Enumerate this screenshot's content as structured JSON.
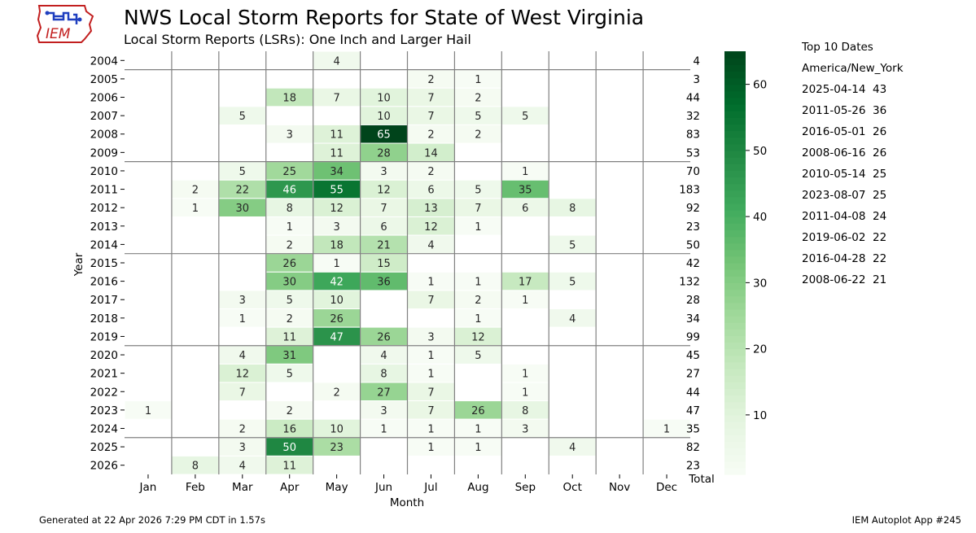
{
  "header": {
    "logo_text": "IEM",
    "title": "NWS Local Storm Reports for State of West Virginia",
    "subtitle": "Local Storm Reports (LSRs): One Inch and Larger Hail"
  },
  "colors": {
    "cmap_low": "#f7fcf5",
    "cmap_high": "#00441b",
    "grid": "#808080"
  },
  "chart_data": {
    "type": "heatmap",
    "title": "NWS Local Storm Reports for State of West Virginia",
    "subtitle": "Local Storm Reports (LSRs): One Inch and Larger Hail",
    "xlabel": "Month",
    "ylabel": "Year",
    "x": [
      "Jan",
      "Feb",
      "Mar",
      "Apr",
      "May",
      "Jun",
      "Jul",
      "Aug",
      "Sep",
      "Oct",
      "Nov",
      "Dec"
    ],
    "y": [
      "2004",
      "2005",
      "2006",
      "2007",
      "2008",
      "2009",
      "2010",
      "2011",
      "2012",
      "2013",
      "2014",
      "2015",
      "2016",
      "2017",
      "2018",
      "2019",
      "2020",
      "2021",
      "2022",
      "2023",
      "2024",
      "2025",
      "2026"
    ],
    "total_label": "Total",
    "values": [
      [
        null,
        null,
        null,
        null,
        4,
        null,
        null,
        null,
        null,
        null,
        null,
        null
      ],
      [
        null,
        null,
        null,
        null,
        null,
        null,
        2,
        1,
        null,
        null,
        null,
        null
      ],
      [
        null,
        null,
        null,
        18,
        7,
        10,
        7,
        2,
        null,
        null,
        null,
        null
      ],
      [
        null,
        null,
        5,
        null,
        null,
        10,
        7,
        5,
        5,
        null,
        null,
        null
      ],
      [
        null,
        null,
        null,
        3,
        11,
        65,
        2,
        2,
        null,
        null,
        null,
        null
      ],
      [
        null,
        null,
        null,
        null,
        11,
        28,
        14,
        null,
        null,
        null,
        null,
        null
      ],
      [
        null,
        null,
        5,
        25,
        34,
        3,
        2,
        null,
        1,
        null,
        null,
        null
      ],
      [
        null,
        2,
        22,
        46,
        55,
        12,
        6,
        5,
        35,
        null,
        null,
        null
      ],
      [
        null,
        1,
        30,
        8,
        12,
        7,
        13,
        7,
        6,
        8,
        null,
        null
      ],
      [
        null,
        null,
        null,
        1,
        3,
        6,
        12,
        1,
        null,
        null,
        null,
        null
      ],
      [
        null,
        null,
        null,
        2,
        18,
        21,
        4,
        null,
        null,
        5,
        null,
        null
      ],
      [
        null,
        null,
        null,
        26,
        1,
        15,
        null,
        null,
        null,
        null,
        null,
        null
      ],
      [
        null,
        null,
        null,
        30,
        42,
        36,
        1,
        1,
        17,
        5,
        null,
        null
      ],
      [
        null,
        null,
        3,
        5,
        10,
        null,
        7,
        2,
        1,
        null,
        null,
        null
      ],
      [
        null,
        null,
        1,
        2,
        26,
        null,
        null,
        1,
        null,
        4,
        null,
        null
      ],
      [
        null,
        null,
        null,
        11,
        47,
        26,
        3,
        12,
        null,
        null,
        null,
        null
      ],
      [
        null,
        null,
        4,
        31,
        null,
        4,
        1,
        5,
        null,
        null,
        null,
        null
      ],
      [
        null,
        null,
        12,
        5,
        null,
        8,
        1,
        null,
        1,
        null,
        null,
        null
      ],
      [
        null,
        null,
        7,
        null,
        2,
        27,
        7,
        null,
        1,
        null,
        null,
        null
      ],
      [
        1,
        null,
        null,
        2,
        null,
        3,
        7,
        26,
        8,
        null,
        null,
        null
      ],
      [
        null,
        null,
        2,
        16,
        10,
        1,
        1,
        1,
        3,
        null,
        null,
        1
      ],
      [
        null,
        null,
        3,
        50,
        23,
        null,
        1,
        1,
        null,
        4,
        null,
        null
      ],
      [
        null,
        8,
        4,
        11,
        null,
        null,
        null,
        null,
        null,
        null,
        null,
        null
      ]
    ],
    "totals": [
      4,
      3,
      44,
      32,
      83,
      53,
      70,
      183,
      92,
      23,
      50,
      42,
      132,
      28,
      34,
      99,
      45,
      27,
      44,
      47,
      35,
      82,
      23
    ],
    "colorbar": {
      "range": [
        1,
        65
      ],
      "ticks": [
        10,
        20,
        30,
        40,
        50,
        60
      ]
    }
  },
  "top_dates": {
    "heading": "Top 10 Dates",
    "timezone": "America/New_York",
    "items": [
      {
        "date": "2025-04-14",
        "count": "43"
      },
      {
        "date": "2011-05-26",
        "count": "36"
      },
      {
        "date": "2016-05-01",
        "count": "26"
      },
      {
        "date": "2008-06-16",
        "count": "26"
      },
      {
        "date": "2010-05-14",
        "count": "25"
      },
      {
        "date": "2023-08-07",
        "count": "25"
      },
      {
        "date": "2011-04-08",
        "count": "24"
      },
      {
        "date": "2019-06-02",
        "count": "22"
      },
      {
        "date": "2016-04-28",
        "count": "22"
      },
      {
        "date": "2008-06-22",
        "count": "21"
      }
    ]
  },
  "footer": {
    "generated": "Generated at 22 Apr 2026 7:29 PM CDT in 1.57s",
    "app": "IEM Autoplot App #245"
  }
}
